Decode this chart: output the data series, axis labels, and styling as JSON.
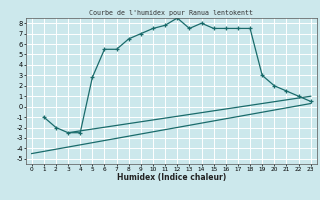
{
  "title": "Courbe de l'humidex pour Ranua lentokentt",
  "xlabel": "Humidex (Indice chaleur)",
  "bg_color": "#cce8ec",
  "grid_color": "#ffffff",
  "line_color": "#1a6b6b",
  "xlim": [
    -0.5,
    23.5
  ],
  "ylim": [
    -5.5,
    8.5
  ],
  "xticks": [
    0,
    1,
    2,
    3,
    4,
    5,
    6,
    7,
    8,
    9,
    10,
    11,
    12,
    13,
    14,
    15,
    16,
    17,
    18,
    19,
    20,
    21,
    22,
    23
  ],
  "yticks": [
    -5,
    -4,
    -3,
    -2,
    -1,
    0,
    1,
    2,
    3,
    4,
    5,
    6,
    7,
    8
  ],
  "series1_x": [
    1,
    2,
    3,
    4,
    5,
    6,
    7,
    8,
    9,
    10,
    11,
    12,
    13,
    14,
    15,
    16,
    17,
    18,
    19,
    20,
    21,
    22,
    23
  ],
  "series1_y": [
    -1,
    -2,
    -2.5,
    -2.5,
    2.8,
    5.5,
    5.5,
    6.5,
    7.0,
    7.5,
    7.8,
    8.5,
    7.5,
    8.0,
    7.5,
    7.5,
    7.5,
    7.5,
    3.0,
    2.0,
    1.5,
    1.0,
    0.5
  ],
  "series2_x": [
    3,
    23
  ],
  "series2_y": [
    -2.5,
    1.0
  ],
  "series3_x": [
    0,
    23
  ],
  "series3_y": [
    -4.5,
    0.3
  ]
}
